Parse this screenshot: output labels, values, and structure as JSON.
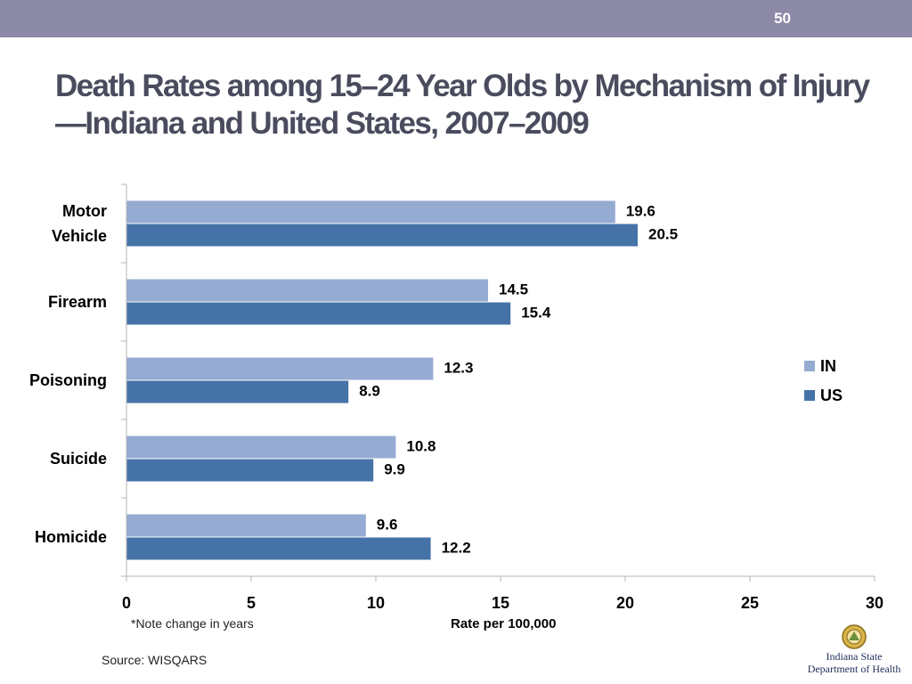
{
  "slide": {
    "number": "50",
    "title": "Death Rates among 15–24 Year Olds by Mechanism of Injury—Indiana and United States, 2007–2009",
    "note": "*Note change in years",
    "source": "Source: WISQARS",
    "logo": {
      "line1": "Indiana State",
      "line2": "Department of Health"
    }
  },
  "colors": {
    "top_bar": "#8c8aa6",
    "title": "#4a4c5e",
    "IN": "#95abd2",
    "US": "#4572a7"
  },
  "chart_data": {
    "type": "bar",
    "orientation": "horizontal",
    "categories": [
      {
        "line1": "Motor",
        "line2": "Vehicle"
      },
      {
        "line1": "Firearm"
      },
      {
        "line1": "Poisoning"
      },
      {
        "line1": "Suicide"
      },
      {
        "line1": "Homicide"
      }
    ],
    "series": [
      {
        "name": "IN",
        "color": "#95abd2",
        "values": [
          19.6,
          14.5,
          12.3,
          10.8,
          9.6
        ]
      },
      {
        "name": "US",
        "color": "#4572a7",
        "values": [
          20.5,
          15.4,
          8.9,
          9.9,
          12.2
        ]
      }
    ],
    "xlabel": "Rate per 100,000",
    "xlim": [
      0,
      30
    ],
    "xticks": [
      0,
      5,
      10,
      15,
      20,
      25,
      30
    ],
    "grid": false,
    "legend": "right"
  }
}
